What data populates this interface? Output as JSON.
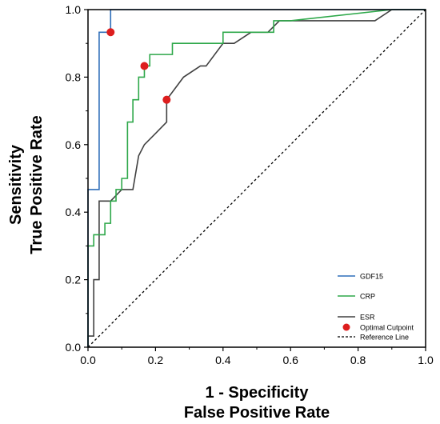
{
  "chart_data": {
    "type": "line",
    "title": "",
    "xlabel": [
      "1 - Specificity",
      "False Positive Rate"
    ],
    "ylabel": [
      "Sensitivity",
      "True Positive Rate"
    ],
    "xlim": [
      0,
      1
    ],
    "ylim": [
      0,
      1
    ],
    "xticks": [
      "0.0",
      "0.2",
      "0.4",
      "0.6",
      "0.8",
      "1.0"
    ],
    "yticks": [
      "0.0",
      "0.2",
      "0.4",
      "0.6",
      "0.8",
      "1.0"
    ],
    "legend_position": "bottom-right",
    "series": [
      {
        "name": "GDF15",
        "color": "#2f6fba",
        "x": [
          0,
          0,
          0.033,
          0.033,
          0.067,
          0.067,
          1.0
        ],
        "y": [
          0,
          0.467,
          0.467,
          0.933,
          0.933,
          1.0,
          1.0
        ]
      },
      {
        "name": "CRP",
        "color": "#2ea84a",
        "x": [
          0,
          0,
          0.017,
          0.017,
          0.033,
          0.033,
          0.05,
          0.05,
          0.067,
          0.067,
          0.083,
          0.083,
          0.1,
          0.1,
          0.117,
          0.117,
          0.133,
          0.133,
          0.15,
          0.15,
          0.167,
          0.167,
          0.183,
          0.183,
          0.25,
          0.25,
          0.3,
          0.3,
          0.4,
          0.4,
          0.55,
          0.55,
          0.6,
          0.6,
          0.9,
          1.0
        ],
        "y": [
          0,
          0.3,
          0.3,
          0.333,
          0.333,
          0.333,
          0.333,
          0.367,
          0.367,
          0.433,
          0.433,
          0.467,
          0.467,
          0.5,
          0.5,
          0.667,
          0.667,
          0.733,
          0.733,
          0.8,
          0.8,
          0.833,
          0.833,
          0.867,
          0.867,
          0.9,
          0.9,
          0.9,
          0.9,
          0.933,
          0.933,
          0.967,
          0.967,
          0.967,
          1.0,
          1.0
        ]
      },
      {
        "name": "ESR",
        "color": "#404040",
        "x": [
          0,
          0,
          0.017,
          0.017,
          0.033,
          0.033,
          0.05,
          0.067,
          0.1,
          0.133,
          0.15,
          0.167,
          0.2,
          0.233,
          0.233,
          0.283,
          0.333,
          0.35,
          0.4,
          0.433,
          0.433,
          0.483,
          0.533,
          0.533,
          0.567,
          0.6,
          0.85,
          0.9,
          1.0
        ],
        "y": [
          0,
          0.033,
          0.033,
          0.2,
          0.2,
          0.433,
          0.433,
          0.433,
          0.467,
          0.467,
          0.567,
          0.6,
          0.633,
          0.667,
          0.733,
          0.8,
          0.833,
          0.833,
          0.9,
          0.9,
          0.9,
          0.933,
          0.933,
          0.933,
          0.967,
          0.967,
          0.967,
          1.0,
          1.0
        ]
      }
    ],
    "optimal_cutpoints": {
      "name": "Optimal Cutpoint",
      "color": "#dd1e1e",
      "points": [
        {
          "x": 0.067,
          "y": 0.933
        },
        {
          "x": 0.167,
          "y": 0.833
        },
        {
          "x": 0.233,
          "y": 0.733
        }
      ]
    },
    "reference_line": {
      "name": "Reference Line",
      "color": "#000000",
      "x": [
        0,
        1
      ],
      "y": [
        0,
        1
      ]
    }
  }
}
